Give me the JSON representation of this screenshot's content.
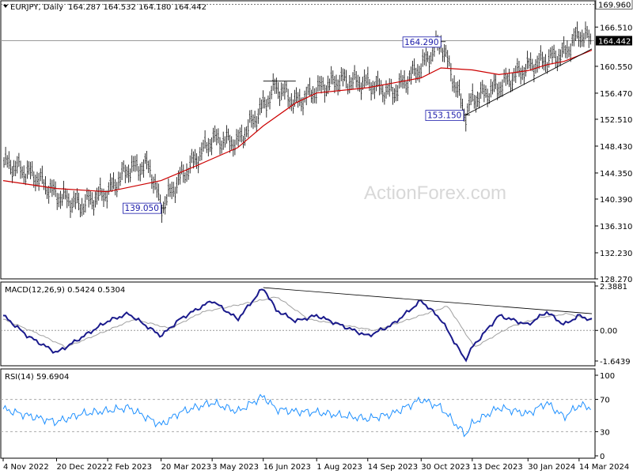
{
  "chart_data": [
    {
      "type": "ohlc",
      "title": "EURJPY, Daily",
      "ohlc_readout": "164.287 164.532 164.180 164.442",
      "ylim": [
        128.27,
        170.5
      ],
      "y_ticks": [
        128.27,
        132.23,
        136.31,
        140.39,
        144.35,
        148.43,
        152.51,
        156.47,
        160.55,
        164.442,
        166.51,
        169.96
      ],
      "y_tick_labels": [
        "128.270",
        "132.230",
        "136.310",
        "140.390",
        "144.350",
        "148.430",
        "152.510",
        "156.470",
        "160.550",
        "164.442",
        "166.510",
        "169.960"
      ],
      "current_price": 164.442,
      "current_price_label": "164.442",
      "level_line": 169.96,
      "level_line_label": "169.960",
      "x_labels": [
        "4 Nov 2022",
        "20 Dec 2022",
        "2 Feb 2023",
        "20 Mar 2023",
        "3 May 2023",
        "16 Jun 2023",
        "1 Aug 2023",
        "14 Sep 2023",
        "30 Oct 2023",
        "13 Dec 2023",
        "30 Jan 2024",
        "14 Mar 2024"
      ],
      "series": [
        {
          "name": "price",
          "color": "#000000",
          "x": [
            "2022-11-04",
            "2022-12-01",
            "2022-12-20",
            "2023-01-10",
            "2023-02-02",
            "2023-02-20",
            "2023-03-10",
            "2023-03-20",
            "2023-04-05",
            "2023-05-03",
            "2023-05-25",
            "2023-06-16",
            "2023-06-27",
            "2023-07-14",
            "2023-08-01",
            "2023-08-20",
            "2023-09-14",
            "2023-10-05",
            "2023-10-30",
            "2023-11-16",
            "2023-12-07",
            "2023-12-13",
            "2024-01-05",
            "2024-01-30",
            "2024-02-15",
            "2024-03-01",
            "2024-03-14",
            "2024-03-25"
          ],
          "values": [
            146.0,
            144.0,
            141.0,
            139.5,
            141.5,
            145.0,
            145.5,
            139.05,
            143.5,
            149.5,
            149.0,
            154.5,
            157.5,
            155.0,
            157.0,
            158.5,
            158.0,
            156.5,
            160.5,
            164.29,
            153.15,
            155.5,
            157.5,
            160.5,
            161.5,
            162.5,
            165.5,
            164.442
          ]
        },
        {
          "name": "moving average",
          "color": "#cc0000",
          "x": [
            "2022-11-04",
            "2022-12-20",
            "2023-02-02",
            "2023-03-20",
            "2023-04-20",
            "2023-05-25",
            "2023-06-16",
            "2023-07-14",
            "2023-08-01",
            "2023-09-14",
            "2023-10-30",
            "2023-11-16",
            "2023-12-13",
            "2024-01-05",
            "2024-01-30",
            "2024-02-15",
            "2024-03-01",
            "2024-03-14",
            "2024-03-25"
          ],
          "values": [
            143.2,
            142.0,
            141.5,
            143.2,
            145.5,
            148.2,
            151.5,
            155.0,
            156.5,
            157.3,
            158.8,
            160.3,
            160.0,
            159.3,
            159.9,
            160.8,
            161.3,
            162.2,
            163.0
          ]
        }
      ],
      "annotations": [
        {
          "text": "164.290",
          "x": "2023-11-16",
          "y": 164.29,
          "color": "#1a1aaa"
        },
        {
          "text": "139.050",
          "x": "2023-03-20",
          "y": 139.05,
          "color": "#1a1aaa"
        },
        {
          "text": "153.150",
          "x": "2023-12-07",
          "y": 153.15,
          "color": "#1a1aaa"
        }
      ],
      "trendlines": [
        {
          "from": {
            "x": "2023-12-07",
            "y": 153.15
          },
          "to": {
            "x": "2024-03-25",
            "y": 163.2
          }
        },
        {
          "from": {
            "x": "2023-06-16",
            "y": 158.3
          },
          "to": {
            "x": "2023-07-14",
            "y": 158.3
          }
        }
      ],
      "watermark": "ActionForex.com"
    },
    {
      "type": "line",
      "title": "MACD(12,26,9) 0.5424 0.5304",
      "ylim": [
        -1.9,
        2.6
      ],
      "y_ticks": [
        2.3881,
        0.0,
        -1.6439
      ],
      "y_tick_labels": [
        "2.3881",
        "0.00",
        "-1.6439"
      ],
      "series": [
        {
          "name": "MACD",
          "color": "#1a1a8c",
          "x": [
            "2022-11-04",
            "2022-11-25",
            "2022-12-20",
            "2023-01-10",
            "2023-02-02",
            "2023-02-20",
            "2023-03-20",
            "2023-04-05",
            "2023-05-03",
            "2023-05-25",
            "2023-06-16",
            "2023-06-27",
            "2023-07-14",
            "2023-08-01",
            "2023-09-14",
            "2023-10-05",
            "2023-10-30",
            "2023-11-16",
            "2023-12-07",
            "2023-12-13",
            "2024-01-05",
            "2024-01-30",
            "2024-02-15",
            "2024-03-01",
            "2024-03-14",
            "2024-03-25"
          ],
          "values": [
            0.8,
            -0.3,
            -1.2,
            -0.4,
            0.5,
            0.9,
            -0.3,
            0.6,
            1.6,
            0.6,
            2.3,
            1.1,
            0.5,
            0.8,
            -0.3,
            0.3,
            1.6,
            0.6,
            -1.6,
            -0.9,
            0.8,
            0.3,
            1.0,
            0.3,
            0.8,
            0.54
          ]
        },
        {
          "name": "Signal",
          "color": "#a0a0a0",
          "x": [
            "2022-11-04",
            "2022-12-05",
            "2022-12-28",
            "2023-01-25",
            "2023-02-25",
            "2023-03-28",
            "2023-04-25",
            "2023-06-05",
            "2023-06-28",
            "2023-07-25",
            "2023-09-20",
            "2023-10-20",
            "2023-11-22",
            "2023-12-15",
            "2024-01-15",
            "2024-02-10",
            "2024-03-05",
            "2024-03-25"
          ],
          "values": [
            0.6,
            -0.2,
            -0.9,
            -0.2,
            0.6,
            0.1,
            1.0,
            1.5,
            1.8,
            0.6,
            0.0,
            0.6,
            1.3,
            -0.9,
            0.2,
            0.7,
            0.9,
            0.53
          ]
        }
      ],
      "trendlines": [
        {
          "from": {
            "x": "2023-06-16",
            "y": 2.3
          },
          "to": {
            "x": "2024-03-25",
            "y": 0.9
          }
        }
      ]
    },
    {
      "type": "line",
      "title": "RSI(14) 59.6904",
      "ylim": [
        0,
        100
      ],
      "y_ticks": [
        100,
        70,
        30,
        0
      ],
      "y_tick_labels": [
        "100",
        "70",
        "30",
        "0"
      ],
      "reference_lines": [
        70,
        30
      ],
      "series": [
        {
          "name": "RSI",
          "color": "#1e90ff",
          "x": [
            "2022-11-04",
            "2022-11-25",
            "2022-12-20",
            "2023-01-10",
            "2023-02-02",
            "2023-02-20",
            "2023-03-20",
            "2023-04-05",
            "2023-05-03",
            "2023-05-25",
            "2023-06-16",
            "2023-06-27",
            "2023-07-14",
            "2023-08-01",
            "2023-09-14",
            "2023-10-05",
            "2023-10-30",
            "2023-11-16",
            "2023-12-07",
            "2023-12-13",
            "2024-01-05",
            "2024-01-30",
            "2024-02-15",
            "2024-03-01",
            "2024-03-14",
            "2024-03-25"
          ],
          "values": [
            58,
            50,
            42,
            52,
            56,
            60,
            38,
            54,
            66,
            55,
            74,
            58,
            55,
            54,
            46,
            52,
            70,
            60,
            26,
            40,
            60,
            52,
            66,
            48,
            63,
            59.69
          ]
        }
      ]
    }
  ]
}
